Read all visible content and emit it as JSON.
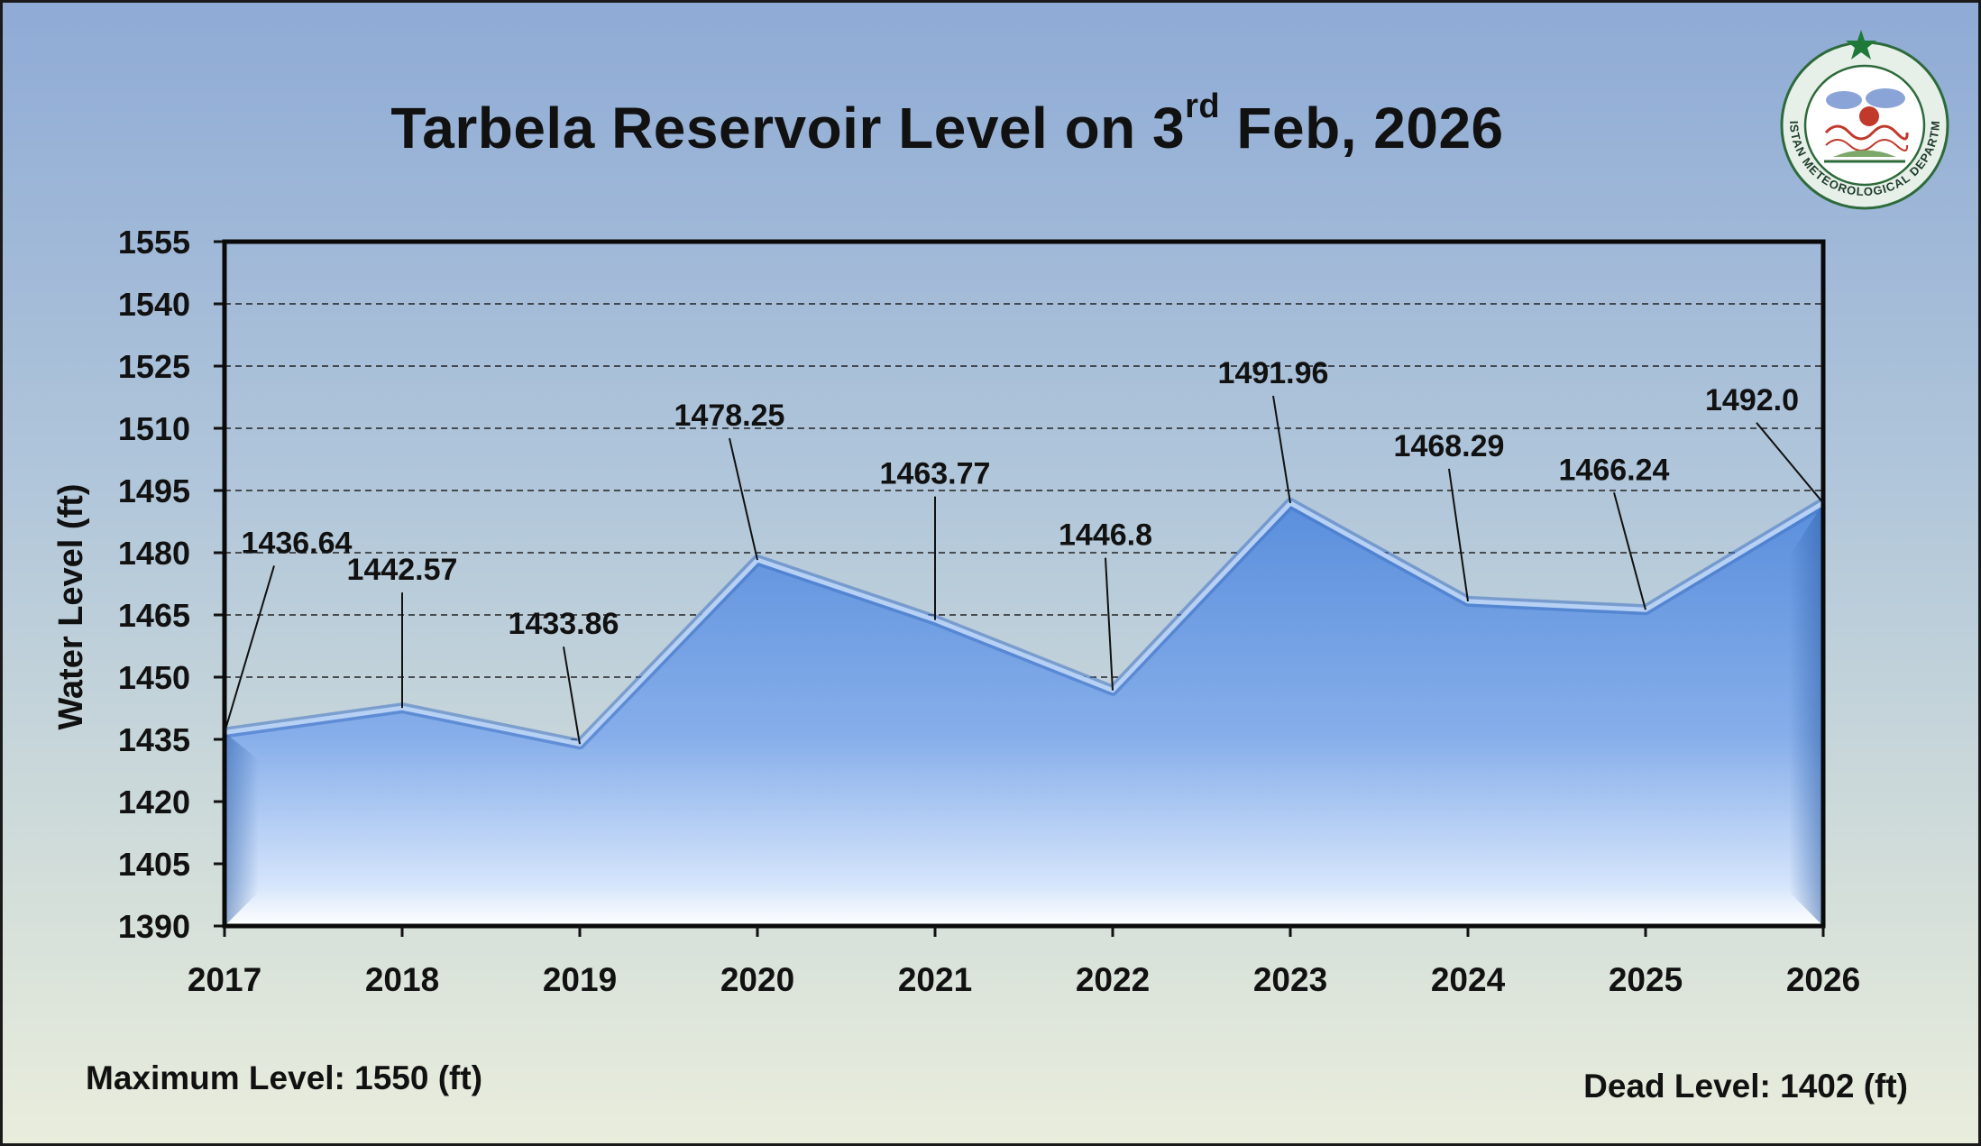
{
  "title": {
    "main": "Tarbela Reservoir Level on 3",
    "superscript": "rd",
    "tail": " Feb, 2026"
  },
  "chart_data": {
    "type": "area",
    "categories": [
      "2017",
      "2018",
      "2019",
      "2020",
      "2021",
      "2022",
      "2023",
      "2024",
      "2025",
      "2026"
    ],
    "values": [
      1436.64,
      1442.57,
      1433.86,
      1478.25,
      1463.77,
      1446.8,
      1491.96,
      1468.29,
      1466.24,
      1492.0
    ],
    "data_labels": [
      "1436.64",
      "1442.57",
      "1433.86",
      "1478.25",
      "1463.77",
      "1446.8",
      "1491.96",
      "1468.29",
      "1466.24",
      "1492.0"
    ],
    "ylabel": "Water Level (ft)",
    "xlabel": "",
    "ylim": [
      1390,
      1555
    ],
    "yticks": [
      "1390",
      "1405",
      "1420",
      "1435",
      "1450",
      "1465",
      "1480",
      "1495",
      "1510",
      "1525",
      "1540",
      "1555"
    ],
    "grid": "horizontal dashed",
    "series_color": "#5b93de"
  },
  "footer": {
    "max_level": "Maximum Level: 1550 (ft)",
    "dead_level": "Dead Level: 1402 (ft)"
  },
  "logo": {
    "organization": "PAKISTAN METEOROLOGICAL DEPARTMENT",
    "icon": "pmd-emblem-icon"
  }
}
